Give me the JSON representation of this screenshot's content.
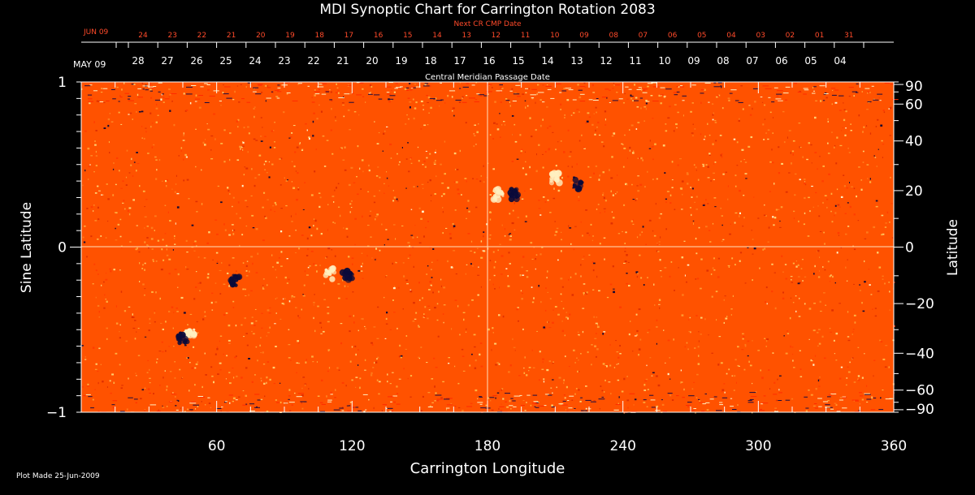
{
  "chart_data": {
    "type": "heatmap",
    "title": "MDI Synoptic Chart for Carrington Rotation 2083",
    "xlabel": "Carrington Longitude",
    "ylabel_left": "Sine Latitude",
    "ylabel_right": "Latitude",
    "xlim": [
      0,
      360
    ],
    "ylim": [
      -1,
      1
    ],
    "x_ticks": [
      "60",
      "120",
      "180",
      "240",
      "300",
      "360"
    ],
    "x_tick_values": [
      60,
      120,
      180,
      240,
      300,
      360
    ],
    "y_left_ticks": [
      "1",
      "0",
      "−1"
    ],
    "y_left_values": [
      1,
      0,
      -1
    ],
    "y_right_ticks": [
      "90",
      "60",
      "40",
      "20",
      "0",
      "−20",
      "−40",
      "−60",
      "−90"
    ],
    "y_right_values": [
      90,
      60,
      40,
      20,
      0,
      -20,
      -40,
      -60,
      -90
    ],
    "reference_lines": {
      "longitude": 180,
      "sine_latitude": 0
    },
    "bipoles": [
      {
        "lon": 185,
        "sinlat": 0.32,
        "polarity": "positive"
      },
      {
        "lon": 192,
        "sinlat": 0.32,
        "polarity": "negative"
      },
      {
        "lon": 210,
        "sinlat": 0.42,
        "polarity": "positive"
      },
      {
        "lon": 220,
        "sinlat": 0.38,
        "polarity": "negative"
      },
      {
        "lon": 110,
        "sinlat": -0.16,
        "polarity": "positive"
      },
      {
        "lon": 118,
        "sinlat": -0.18,
        "polarity": "negative"
      },
      {
        "lon": 48,
        "sinlat": -0.52,
        "polarity": "positive"
      },
      {
        "lon": 45,
        "sinlat": -0.55,
        "polarity": "negative"
      },
      {
        "lon": 68,
        "sinlat": -0.2,
        "polarity": "negative"
      }
    ],
    "colors": {
      "background": "#ff5200",
      "positive": "#fff0c0",
      "negative": "#0a0a3a",
      "text_red": "#ff4a2a"
    }
  },
  "top_axes": {
    "next_cr_label": "Next CR CMP Date",
    "next_cr_start": "JUN 09",
    "next_cr_dates": [
      "24",
      "23",
      "22",
      "21",
      "20",
      "19",
      "18",
      "17",
      "16",
      "15",
      "14",
      "13",
      "12",
      "11",
      "10",
      "09",
      "08",
      "07",
      "06",
      "05",
      "04",
      "03",
      "02",
      "01",
      "31"
    ],
    "cmp_label": "Central Meridian Passage Date",
    "cmp_start": "MAY 09",
    "cmp_dates": [
      "28",
      "27",
      "26",
      "25",
      "24",
      "23",
      "22",
      "21",
      "20",
      "19",
      "18",
      "17",
      "16",
      "15",
      "14",
      "13",
      "12",
      "11",
      "10",
      "09",
      "08",
      "07",
      "06",
      "05",
      "04"
    ]
  },
  "footer": {
    "plot_made": "Plot Made 25-Jun-2009"
  }
}
